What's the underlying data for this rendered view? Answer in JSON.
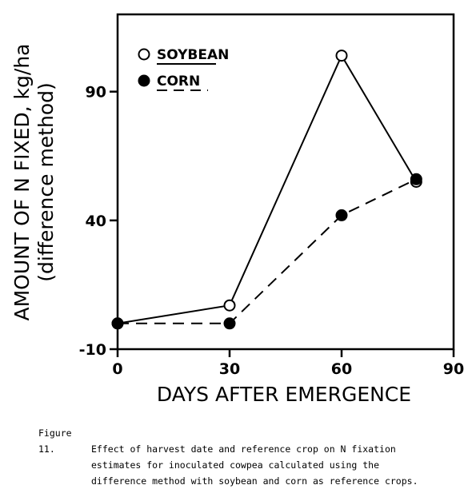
{
  "chart_data": {
    "type": "line",
    "title": "",
    "xlabel": "DAYS AFTER EMERGENCE",
    "ylabel_line1": "AMOUNT OF N FIXED, kg/ha",
    "ylabel_line2": "(difference method)",
    "xlim": [
      0,
      90
    ],
    "ylim": [
      -10,
      120
    ],
    "xticks": [
      0,
      30,
      60,
      90
    ],
    "yticks": [
      -10,
      40,
      90
    ],
    "xtick_labels": [
      "0",
      "30",
      "60",
      "90"
    ],
    "ytick_labels": [
      "-10",
      "40",
      "90"
    ],
    "grid": false,
    "legend_position": "top-left",
    "series": [
      {
        "name": "SOYBEAN",
        "marker": "open-circle",
        "line": "solid",
        "x": [
          0,
          30,
          60,
          80
        ],
        "y": [
          0,
          7,
          104,
          55
        ]
      },
      {
        "name": "CORN",
        "marker": "filled-circle",
        "line": "dashed",
        "x": [
          0,
          30,
          60,
          80
        ],
        "y": [
          0,
          0,
          42,
          56
        ]
      }
    ]
  },
  "caption": {
    "label": "Figure 11.",
    "lines": [
      "Effect of harvest date and reference crop on N fixation",
      "estimates for inoculated cowpea calculated using the",
      "difference method with soybean and corn as reference crops."
    ]
  }
}
